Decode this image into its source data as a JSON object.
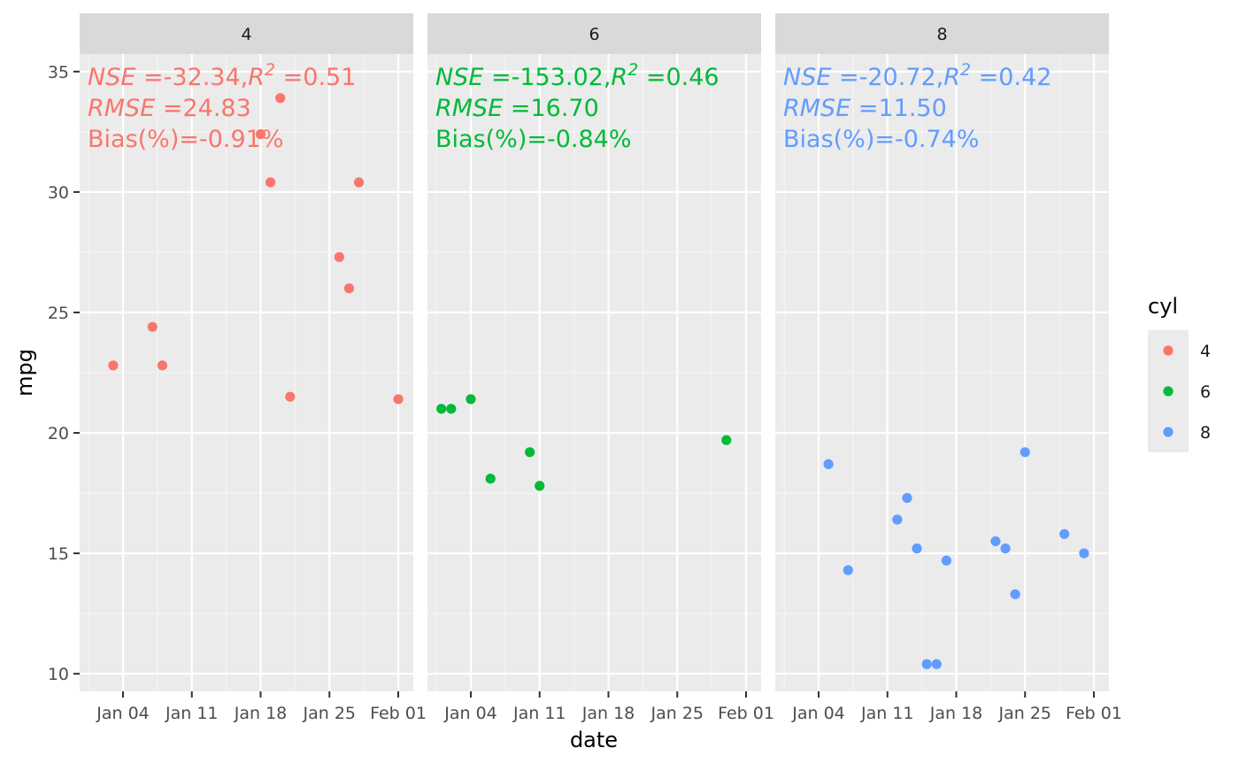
{
  "chart_data": {
    "type": "scatter",
    "xlabel": "date",
    "ylabel": "mpg",
    "ylim": [
      9.27,
      35.73
    ],
    "xlim": [
      "2021-12-31",
      "2022-02-01"
    ],
    "x_ticks": [
      {
        "date": "2022-01-04",
        "label": "Jan 04"
      },
      {
        "date": "2022-01-11",
        "label": "Jan 11"
      },
      {
        "date": "2022-01-18",
        "label": "Jan 18"
      },
      {
        "date": "2022-01-25",
        "label": "Jan 25"
      },
      {
        "date": "2022-02-01",
        "label": "Feb 01"
      }
    ],
    "y_ticks": [
      10,
      15,
      20,
      25,
      30,
      35
    ],
    "grid": true,
    "legend": {
      "title": "cyl",
      "position": "right",
      "entries": [
        "4",
        "6",
        "8"
      ]
    },
    "panels": [
      {
        "strip": "4",
        "color": "#F8766D",
        "annotation": {
          "nse": "-32.34",
          "r2": "0.51",
          "rmse": "24.83",
          "bias": "-0.91%"
        },
        "points": [
          {
            "date": "2022-01-03",
            "y": 22.8
          },
          {
            "date": "2022-01-07",
            "y": 24.4
          },
          {
            "date": "2022-01-08",
            "y": 22.8
          },
          {
            "date": "2022-01-18",
            "y": 32.4
          },
          {
            "date": "2022-01-19",
            "y": 30.4
          },
          {
            "date": "2022-01-20",
            "y": 33.9
          },
          {
            "date": "2022-01-21",
            "y": 21.5
          },
          {
            "date": "2022-01-26",
            "y": 27.3
          },
          {
            "date": "2022-01-27",
            "y": 26.0
          },
          {
            "date": "2022-01-28",
            "y": 30.4
          },
          {
            "date": "2022-02-01",
            "y": 21.4
          }
        ]
      },
      {
        "strip": "6",
        "color": "#00BA38",
        "annotation": {
          "nse": "-153.02",
          "r2": "0.46",
          "rmse": "16.70",
          "bias": "-0.84%"
        },
        "points": [
          {
            "date": "2022-01-01",
            "y": 21.0
          },
          {
            "date": "2022-01-02",
            "y": 21.0
          },
          {
            "date": "2022-01-04",
            "y": 21.4
          },
          {
            "date": "2022-01-06",
            "y": 18.1
          },
          {
            "date": "2022-01-10",
            "y": 19.2
          },
          {
            "date": "2022-01-11",
            "y": 17.8
          },
          {
            "date": "2022-01-30",
            "y": 19.7
          }
        ]
      },
      {
        "strip": "8",
        "color": "#619CFF",
        "annotation": {
          "nse": "-20.72",
          "r2": "0.42",
          "rmse": "11.50",
          "bias": "-0.74%"
        },
        "points": [
          {
            "date": "2022-01-05",
            "y": 18.7
          },
          {
            "date": "2022-01-07",
            "y": 14.3
          },
          {
            "date": "2022-01-12",
            "y": 16.4
          },
          {
            "date": "2022-01-13",
            "y": 17.3
          },
          {
            "date": "2022-01-14",
            "y": 15.2
          },
          {
            "date": "2022-01-15",
            "y": 10.4
          },
          {
            "date": "2022-01-16",
            "y": 10.4
          },
          {
            "date": "2022-01-17",
            "y": 14.7
          },
          {
            "date": "2022-01-22",
            "y": 15.5
          },
          {
            "date": "2022-01-23",
            "y": 15.2
          },
          {
            "date": "2022-01-24",
            "y": 13.3
          },
          {
            "date": "2022-01-25",
            "y": 19.2
          },
          {
            "date": "2022-01-29",
            "y": 15.8
          },
          {
            "date": "2022-01-31",
            "y": 15.0
          }
        ]
      }
    ]
  }
}
